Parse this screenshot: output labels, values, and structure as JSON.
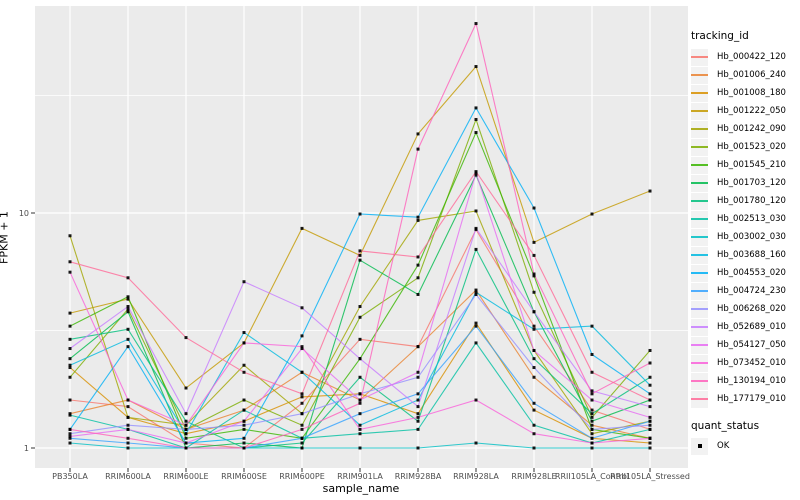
{
  "chart_data": {
    "type": "line",
    "title": "",
    "xlabel": "sample_name",
    "ylabel": "FPKM + 1",
    "y_scale": "log10",
    "y_ticks": [
      1,
      10
    ],
    "y_tick_labels": [
      "1",
      "10"
    ],
    "y_minor_ticks": [
      3.162,
      31.62
    ],
    "ylim": [
      0.93,
      70
    ],
    "grid": "on",
    "panel_bg": "#EBEBEB",
    "grid_color": "#FFFFFF",
    "tick_text_color": "#4D4D4D",
    "point_marker": "filled-black-square",
    "legend_position": "right",
    "legend_color_title": "tracking_id",
    "legend_shape_title": "quant_status",
    "legend_shape_entries": [
      "OK"
    ],
    "categories": [
      "PB350LA",
      "RRIM600LA",
      "RRIM600LE",
      "RRIM600SE",
      "RRIM600PE",
      "RRIM901LA",
      "RRIM928BA",
      "RRIM928LA",
      "RRIM928LE",
      "RRII105LA_Control",
      "RRII105LA_Stressed"
    ],
    "series": [
      {
        "name": "Hb_000422_120",
        "color": "#F8766D",
        "values": [
          1.6,
          1.5,
          1.05,
          1.0,
          1.55,
          2.9,
          2.7,
          8.5,
          3.3,
          1.45,
          1.2
        ]
      },
      {
        "name": "Hb_001006_240",
        "color": "#EA8331",
        "values": [
          1.4,
          1.6,
          1.2,
          1.45,
          2.1,
          1.6,
          2.7,
          4.7,
          2.0,
          1.25,
          1.1
        ]
      },
      {
        "name": "Hb_001008_180",
        "color": "#D89000",
        "values": [
          2.2,
          1.35,
          1.15,
          1.3,
          1.65,
          1.7,
          1.4,
          3.4,
          1.45,
          1.1,
          1.05
        ]
      },
      {
        "name": "Hb_001222_050",
        "color": "#C49A00",
        "values": [
          3.75,
          4.3,
          1.8,
          2.8,
          8.6,
          6.6,
          21.7,
          42.0,
          7.5,
          9.9,
          12.4
        ]
      },
      {
        "name": "Hb_001242_090",
        "color": "#A3A500",
        "values": [
          8.0,
          1.35,
          1.25,
          2.25,
          1.4,
          4.0,
          9.3,
          10.2,
          2.6,
          1.15,
          1.3
        ]
      },
      {
        "name": "Hb_001523_020",
        "color": "#7CAE00",
        "values": [
          2.0,
          3.9,
          1.2,
          1.6,
          1.25,
          3.6,
          5.3,
          25.0,
          4.6,
          1.35,
          2.6
        ]
      },
      {
        "name": "Hb_001545_210",
        "color": "#39B600",
        "values": [
          3.3,
          4.4,
          1.1,
          1.2,
          1.1,
          2.4,
          6.0,
          22.0,
          5.4,
          1.2,
          1.1
        ]
      },
      {
        "name": "Hb_001703_120",
        "color": "#00BB4E",
        "values": [
          2.4,
          3.8,
          1.0,
          1.05,
          1.0,
          6.3,
          4.5,
          14.5,
          3.8,
          1.3,
          1.6
        ]
      },
      {
        "name": "Hb_001780_120",
        "color": "#00BF7D",
        "values": [
          2.9,
          3.2,
          1.3,
          1.0,
          1.05,
          2.0,
          1.3,
          7.0,
          2.4,
          1.4,
          2.0
        ]
      },
      {
        "name": "Hb_002513_030",
        "color": "#00C1A3",
        "values": [
          1.38,
          1.2,
          1.0,
          1.45,
          1.1,
          1.15,
          1.2,
          2.8,
          1.25,
          1.05,
          1.2
        ]
      },
      {
        "name": "Hb_003002_030",
        "color": "#00BFC4",
        "values": [
          1.05,
          1.0,
          1.0,
          1.0,
          1.0,
          1.0,
          1.0,
          1.05,
          1.0,
          1.0,
          1.0
        ]
      },
      {
        "name": "Hb_003688_160",
        "color": "#00BAE0",
        "values": [
          2.25,
          2.9,
          1.15,
          3.1,
          2.1,
          1.25,
          1.6,
          4.6,
          3.2,
          3.3,
          1.85
        ]
      },
      {
        "name": "Hb_004553_020",
        "color": "#00B0F6",
        "values": [
          1.2,
          2.7,
          1.05,
          1.1,
          3.0,
          9.9,
          9.6,
          28.0,
          10.5,
          2.5,
          1.7
        ]
      },
      {
        "name": "Hb_004724_230",
        "color": "#35A2FF",
        "values": [
          1.1,
          1.05,
          1.0,
          1.0,
          1.1,
          1.4,
          1.7,
          3.3,
          1.55,
          1.1,
          1.3
        ]
      },
      {
        "name": "Hb_006268_020",
        "color": "#9590FF",
        "values": [
          1.15,
          1.25,
          1.2,
          1.25,
          1.4,
          1.7,
          2.0,
          4.5,
          2.2,
          1.2,
          1.25
        ]
      },
      {
        "name": "Hb_052689_010",
        "color": "#C77CFF",
        "values": [
          2.65,
          4.0,
          1.4,
          5.1,
          3.95,
          2.4,
          1.5,
          8.6,
          3.8,
          1.75,
          1.5
        ]
      },
      {
        "name": "Hb_054127_050",
        "color": "#E76BF3",
        "values": [
          1.12,
          1.2,
          1.05,
          1.3,
          2.65,
          1.6,
          2.1,
          14.8,
          2.6,
          1.6,
          1.35
        ]
      },
      {
        "name": "Hb_073452_010",
        "color": "#FA62DB",
        "values": [
          5.6,
          1.6,
          1.25,
          2.8,
          2.7,
          1.2,
          1.35,
          1.6,
          1.15,
          1.05,
          1.1
        ]
      },
      {
        "name": "Hb_130194_010",
        "color": "#FF62BC",
        "values": [
          1.2,
          1.1,
          1.0,
          1.0,
          1.2,
          1.55,
          18.7,
          64.0,
          5.5,
          1.7,
          2.3
        ]
      },
      {
        "name": "Hb_177179_010",
        "color": "#FF6A98",
        "values": [
          6.2,
          5.3,
          2.95,
          2.1,
          1.7,
          6.9,
          6.5,
          15.0,
          6.6,
          2.1,
          1.6
        ]
      }
    ]
  }
}
